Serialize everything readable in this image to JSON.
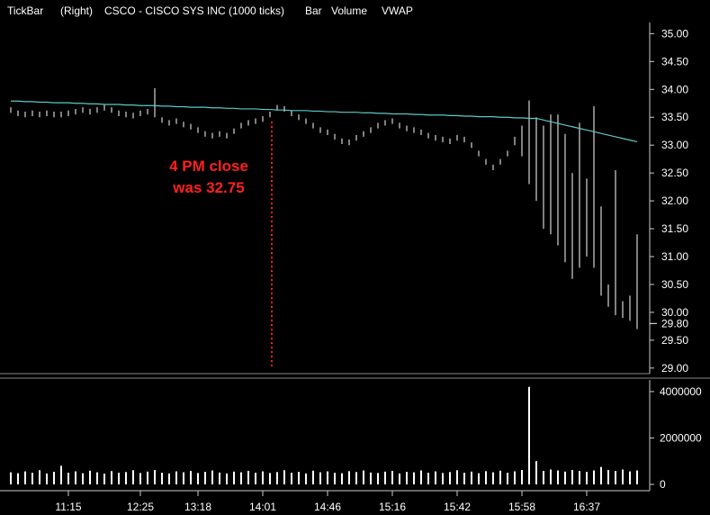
{
  "chart_data": {
    "type": "tickbar",
    "header": [
      "TickBar",
      "(Right)",
      "CSCO - CISCO SYS INC (1000 ticks)"
    ],
    "annotation": [
      "4 PM close",
      "was 32.75"
    ],
    "categories": [
      null,
      null,
      null,
      null,
      null,
      null,
      null,
      null,
      "11:15",
      null,
      null,
      null,
      null,
      null,
      null,
      null,
      null,
      null,
      "12:25",
      null,
      null,
      null,
      null,
      null,
      null,
      null,
      "13:18",
      null,
      null,
      null,
      null,
      null,
      null,
      null,
      null,
      "14:01",
      null,
      null,
      null,
      null,
      null,
      null,
      null,
      null,
      "14:46",
      null,
      null,
      null,
      null,
      null,
      null,
      null,
      null,
      "15:16",
      null,
      null,
      null,
      null,
      null,
      null,
      null,
      null,
      "15:42",
      null,
      null,
      null,
      null,
      null,
      null,
      null,
      null,
      "15:58",
      null,
      null,
      null,
      null,
      null,
      null,
      null,
      null,
      "16:37",
      null,
      null,
      null,
      null,
      null,
      null,
      null
    ],
    "price": {
      "name": "Bar",
      "color": "#ffffff",
      "high": [
        33.68,
        33.62,
        33.6,
        33.62,
        33.6,
        33.62,
        33.6,
        33.6,
        33.62,
        33.65,
        33.68,
        33.65,
        33.68,
        33.72,
        33.68,
        33.62,
        33.6,
        33.58,
        33.62,
        33.65,
        34.02,
        33.5,
        33.45,
        33.48,
        33.42,
        33.38,
        33.32,
        33.25,
        33.22,
        33.25,
        33.22,
        33.3,
        33.4,
        33.45,
        33.48,
        33.52,
        33.6,
        33.72,
        33.7,
        33.62,
        33.55,
        33.48,
        33.4,
        33.32,
        33.28,
        33.2,
        33.12,
        33.1,
        33.18,
        33.25,
        33.32,
        33.4,
        33.45,
        33.48,
        33.4,
        33.35,
        33.32,
        33.28,
        33.22,
        33.18,
        33.15,
        33.12,
        33.18,
        33.15,
        33.05,
        32.9,
        32.75,
        32.65,
        32.75,
        32.9,
        33.15,
        33.35,
        33.8,
        33.5,
        33.35,
        33.55,
        33.55,
        33.2,
        32.5,
        33.4,
        32.4,
        33.7,
        31.9,
        30.5,
        32.55,
        30.2,
        30.3,
        31.4
      ],
      "low": [
        33.58,
        33.52,
        33.5,
        33.52,
        33.5,
        33.52,
        33.5,
        33.5,
        33.52,
        33.55,
        33.58,
        33.55,
        33.58,
        33.62,
        33.58,
        33.52,
        33.5,
        33.48,
        33.52,
        33.55,
        33.5,
        33.4,
        33.35,
        33.38,
        33.32,
        33.28,
        33.22,
        33.15,
        33.12,
        33.15,
        33.12,
        33.2,
        33.3,
        33.35,
        33.38,
        33.42,
        33.5,
        33.62,
        33.6,
        33.52,
        33.45,
        33.38,
        33.3,
        33.22,
        33.18,
        33.1,
        33.02,
        33.0,
        33.08,
        33.15,
        33.22,
        33.3,
        33.35,
        33.38,
        33.3,
        33.25,
        33.22,
        33.18,
        33.12,
        33.08,
        33.05,
        33.02,
        33.08,
        33.05,
        32.95,
        32.8,
        32.65,
        32.55,
        32.65,
        32.8,
        33.0,
        32.8,
        32.3,
        32.0,
        31.5,
        31.4,
        31.2,
        30.9,
        30.6,
        30.8,
        31.0,
        30.8,
        30.3,
        30.1,
        29.95,
        29.9,
        29.85,
        29.7
      ]
    },
    "volume": {
      "name": "Volume",
      "color": "#ffffff",
      "values": [
        520000,
        480000,
        560000,
        500000,
        610000,
        470000,
        540000,
        800000,
        500000,
        560000,
        480000,
        590000,
        520000,
        460000,
        570000,
        500000,
        530000,
        610000,
        490000,
        550000,
        620000,
        500000,
        470000,
        560000,
        520000,
        580000,
        490000,
        540000,
        600000,
        510000,
        470000,
        550000,
        520000,
        580000,
        500000,
        560000,
        490000,
        530000,
        610000,
        500000,
        540000,
        470000,
        590000,
        520000,
        560000,
        500000,
        480000,
        570000,
        530000,
        600000,
        510000,
        490000,
        550000,
        580000,
        470000,
        540000,
        520000,
        600000,
        500000,
        560000,
        490000,
        530000,
        610000,
        500000,
        550000,
        480000,
        570000,
        520000,
        590000,
        500000,
        560000,
        620000,
        4200000,
        1000000,
        580000,
        640000,
        600000,
        550000,
        620000,
        580000,
        540000,
        600000,
        750000,
        620000,
        580000,
        640000,
        560000,
        600000
      ]
    },
    "vwap": {
      "name": "VWAP",
      "color": "#5ec8c8",
      "values": [
        33.79,
        33.79,
        33.78,
        33.78,
        33.77,
        33.77,
        33.76,
        33.76,
        33.76,
        33.75,
        33.75,
        33.74,
        33.74,
        33.73,
        33.73,
        33.73,
        33.72,
        33.72,
        33.71,
        33.71,
        33.71,
        33.7,
        33.7,
        33.69,
        33.69,
        33.68,
        33.68,
        33.68,
        33.67,
        33.67,
        33.66,
        33.66,
        33.65,
        33.65,
        33.65,
        33.64,
        33.64,
        33.63,
        33.63,
        33.62,
        33.62,
        33.62,
        33.61,
        33.61,
        33.6,
        33.6,
        33.59,
        33.59,
        33.59,
        33.58,
        33.58,
        33.57,
        33.57,
        33.56,
        33.56,
        33.56,
        33.55,
        33.55,
        33.54,
        33.54,
        33.54,
        33.53,
        33.53,
        33.52,
        33.52,
        33.51,
        33.51,
        33.51,
        33.5,
        33.5,
        33.49,
        33.49,
        33.48,
        33.48,
        33.45,
        33.42,
        33.39,
        33.36,
        33.33,
        33.3,
        33.27,
        33.24,
        33.21,
        33.18,
        33.15,
        33.12,
        33.09,
        33.06
      ]
    },
    "ylim": [
      28.9,
      35.2
    ],
    "yticks": [
      {
        "value": 29,
        "label": "29.00"
      },
      {
        "value": 29.5,
        "label": "29.50"
      },
      {
        "value": 30,
        "label": "30.00"
      },
      {
        "value": 30.5,
        "label": "30.50"
      },
      {
        "value": 31,
        "label": "31.00"
      },
      {
        "value": 31.5,
        "label": "31.50"
      },
      {
        "value": 32,
        "label": "32.00"
      },
      {
        "value": 32.5,
        "label": "32.50"
      },
      {
        "value": 33,
        "label": "33.00"
      },
      {
        "value": 33.5,
        "label": "33.50"
      },
      {
        "value": 34,
        "label": "34.00"
      },
      {
        "value": 34.5,
        "label": "34.50"
      },
      {
        "value": 35,
        "label": "35.00"
      }
    ],
    "last_price": {
      "value": 29.8,
      "label": "29.80"
    },
    "volume_ylim": [
      0,
      4500000
    ],
    "volume_yticks": [
      0,
      2000000,
      4000000
    ]
  }
}
